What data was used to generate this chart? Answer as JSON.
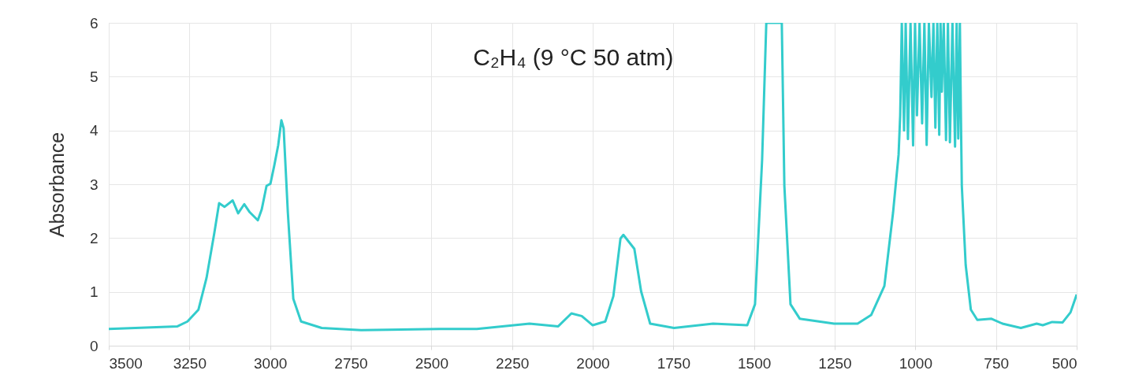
{
  "chart_data": {
    "type": "line",
    "ylabel": "Absorbance",
    "annotations": [
      "C₂H₄ (9 °C 50 atm)"
    ],
    "xlim": [
      3500,
      500
    ],
    "xticks": [
      3500,
      3250,
      3000,
      2750,
      2500,
      2250,
      2000,
      1750,
      1500,
      1250,
      1000,
      750,
      500
    ],
    "ylim": [
      0,
      6
    ],
    "yticks": [
      0,
      1,
      2,
      3,
      4,
      5,
      6
    ],
    "grid": true,
    "marker": "none",
    "line_style": "solid",
    "series": [
      {
        "color": "#33cccc",
        "x": [
          3500,
          3287,
          3256,
          3222,
          3197,
          3173,
          3158,
          3141,
          3116,
          3099,
          3080,
          3063,
          3038,
          3026,
          3011,
          2999,
          2987,
          2975,
          2965,
          2958,
          2945,
          2928,
          2904,
          2840,
          2718,
          2474,
          2359,
          2196,
          2107,
          2066,
          2034,
          2000,
          1961,
          1936,
          1914,
          1905,
          1871,
          1850,
          1822,
          1748,
          1627,
          1521,
          1497,
          1475,
          1462,
          1414,
          1406,
          1387,
          1358,
          1333,
          1252,
          1179,
          1137,
          1096,
          1069,
          1052,
          1047,
          1042,
          1035,
          1030,
          1023,
          1015,
          1007,
          1001,
          995,
          987,
          979,
          972,
          965,
          958,
          950,
          944,
          938,
          932,
          926,
          922,
          918,
          912,
          905,
          899,
          893,
          885,
          877,
          872,
          867,
          862,
          858,
          856,
          844,
          828,
          808,
          764,
          730,
          673,
          624,
          605,
          576,
          544,
          519,
          500
        ],
        "values": [
          0.31,
          0.36,
          0.45,
          0.67,
          1.26,
          2.09,
          2.65,
          2.58,
          2.7,
          2.46,
          2.63,
          2.48,
          2.33,
          2.53,
          2.97,
          3.01,
          3.35,
          3.72,
          4.19,
          4.04,
          2.48,
          0.87,
          0.45,
          0.33,
          0.29,
          0.31,
          0.31,
          0.41,
          0.36,
          0.6,
          0.55,
          0.38,
          0.45,
          0.92,
          1.99,
          2.06,
          1.8,
          1.01,
          0.41,
          0.33,
          0.41,
          0.38,
          0.77,
          3.45,
          6,
          6,
          2.97,
          0.77,
          0.5,
          0.48,
          0.41,
          0.41,
          0.57,
          1.11,
          2.48,
          3.55,
          4.28,
          6,
          4.0,
          6,
          3.84,
          6,
          3.72,
          6,
          4.28,
          6,
          4.13,
          6,
          3.73,
          6,
          4.62,
          6,
          4.05,
          6,
          3.92,
          6,
          4.72,
          6,
          3.82,
          6,
          3.78,
          6,
          3.7,
          6,
          3.85,
          6,
          3.9,
          2.97,
          1.5,
          0.67,
          0.48,
          0.5,
          0.41,
          0.33,
          0.41,
          0.38,
          0.44,
          0.43,
          0.62,
          0.95
        ]
      }
    ]
  }
}
